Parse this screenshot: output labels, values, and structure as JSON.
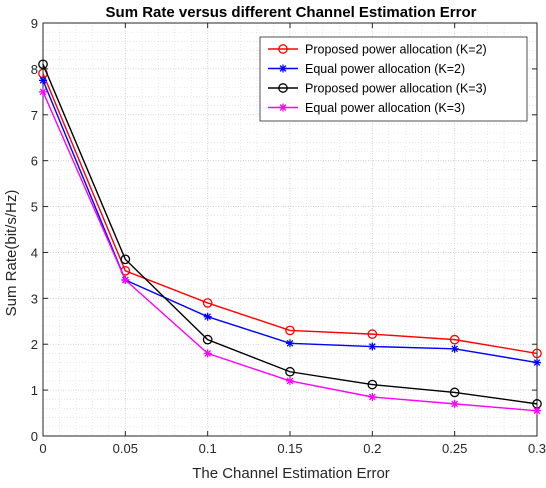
{
  "chart_data": {
    "type": "line",
    "title": "Sum Rate versus different Channel Estimation Error",
    "xlabel": "The Channel Estimation Error",
    "ylabel": "Sum Rate(bit/s/Hz)",
    "x": [
      0,
      0.05,
      0.1,
      0.15,
      0.2,
      0.25,
      0.3
    ],
    "xlim": [
      0,
      0.3
    ],
    "ylim": [
      0,
      9
    ],
    "xticks": [
      "0",
      "0.05",
      "0.1",
      "0.15",
      "0.2",
      "0.25",
      "0.3"
    ],
    "yticks": [
      "0",
      "1",
      "2",
      "3",
      "4",
      "5",
      "6",
      "7",
      "8",
      "9"
    ],
    "grid": "on (major and minor, dotted)",
    "legend_position": "top-right",
    "series": [
      {
        "name": "Proposed power allocation (K=2)",
        "color": "#ff0000",
        "marker": "circle",
        "values": [
          7.9,
          3.6,
          2.9,
          2.3,
          2.22,
          2.1,
          1.8
        ]
      },
      {
        "name": "Equal power allocation (K=2)",
        "color": "#0000ff",
        "marker": "asterisk",
        "values": [
          7.75,
          3.4,
          2.6,
          2.02,
          1.95,
          1.9,
          1.6
        ]
      },
      {
        "name": "Proposed power allocation (K=3)",
        "color": "#000000",
        "marker": "circle",
        "values": [
          8.1,
          3.85,
          2.1,
          1.4,
          1.12,
          0.95,
          0.7
        ]
      },
      {
        "name": "Equal power allocation (K=3)",
        "color": "#ff00ff",
        "marker": "asterisk",
        "values": [
          7.5,
          3.4,
          1.8,
          1.2,
          0.85,
          0.7,
          0.55
        ]
      }
    ]
  }
}
